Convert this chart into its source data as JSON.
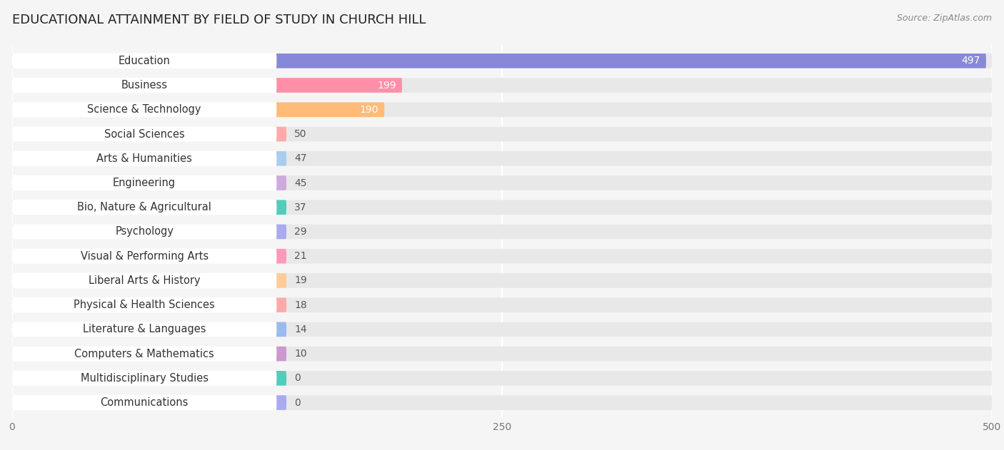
{
  "title": "EDUCATIONAL ATTAINMENT BY FIELD OF STUDY IN CHURCH HILL",
  "source": "Source: ZipAtlas.com",
  "categories": [
    "Education",
    "Business",
    "Science & Technology",
    "Social Sciences",
    "Arts & Humanities",
    "Engineering",
    "Bio, Nature & Agricultural",
    "Psychology",
    "Visual & Performing Arts",
    "Liberal Arts & History",
    "Physical & Health Sciences",
    "Literature & Languages",
    "Computers & Mathematics",
    "Multidisciplinary Studies",
    "Communications"
  ],
  "values": [
    497,
    199,
    190,
    50,
    47,
    45,
    37,
    29,
    21,
    19,
    18,
    14,
    10,
    0,
    0
  ],
  "colors": [
    "#8888d8",
    "#ff8fa8",
    "#ffbb77",
    "#ffaaaa",
    "#aaccee",
    "#ccaadd",
    "#55ccbb",
    "#aaaaee",
    "#ff99bb",
    "#ffcc99",
    "#ffaaaa",
    "#99bbee",
    "#cc99cc",
    "#55ccbb",
    "#aaaaee"
  ],
  "xlim_max": 500,
  "xticks": [
    0,
    250,
    500
  ],
  "bg_color": "#f5f5f5",
  "bar_bg_color": "#e8e8e8",
  "white": "#ffffff",
  "title_fontsize": 13,
  "label_fontsize": 10.5,
  "value_fontsize": 10,
  "source_fontsize": 9
}
